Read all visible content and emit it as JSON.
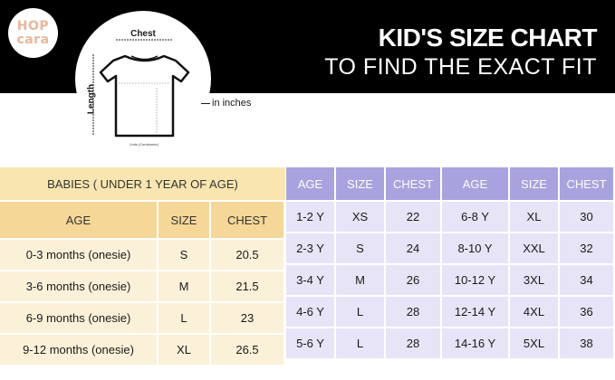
{
  "brand": {
    "logo_line1": "HOP",
    "logo_line2": "cara"
  },
  "header": {
    "title": "KID'S SIZE CHART",
    "subtitle": "TO FIND THE EXACT FIT"
  },
  "diagram": {
    "chest_label": "Chest",
    "length_label": "Length",
    "unit_label": "Units (Centimeter)",
    "inches_note": "in inches"
  },
  "babies_table": {
    "title": "BABIES ( UNDER 1 YEAR OF AGE)",
    "headers": [
      "AGE",
      "SIZE",
      "CHEST"
    ],
    "rows": [
      [
        "0-3 months (onesie)",
        "S",
        "20.5"
      ],
      [
        "3-6 months (onesie)",
        "M",
        "21.5"
      ],
      [
        "6-9 months (onesie)",
        "L",
        "23"
      ],
      [
        "9-12 months (onesie)",
        "XL",
        "26.5"
      ]
    ]
  },
  "kids_table": {
    "headers": [
      "AGE",
      "SIZE",
      "CHEST",
      "AGE",
      "SIZE",
      "CHEST"
    ],
    "rows": [
      [
        "1-2 Y",
        "XS",
        "22",
        "6-8 Y",
        "XL",
        "30"
      ],
      [
        "2-3 Y",
        "S",
        "24",
        "8-10 Y",
        "XXL",
        "32"
      ],
      [
        "3-4 Y",
        "M",
        "26",
        "10-12 Y",
        "3XL",
        "34"
      ],
      [
        "4-6 Y",
        "L",
        "28",
        "12-14 Y",
        "4XL",
        "36"
      ],
      [
        "5-6 Y",
        "L",
        "28",
        "14-16 Y",
        "5XL",
        "38"
      ]
    ]
  },
  "colors": {
    "babies_title_bg": "#f9e5b0",
    "babies_header_bg": "#f5d797",
    "babies_row_bg": "#fbf1d8",
    "kids_header_bg": "#a8a3de",
    "kids_row_bg": "#e6e4f6",
    "logo_text": "#e8b79c"
  }
}
